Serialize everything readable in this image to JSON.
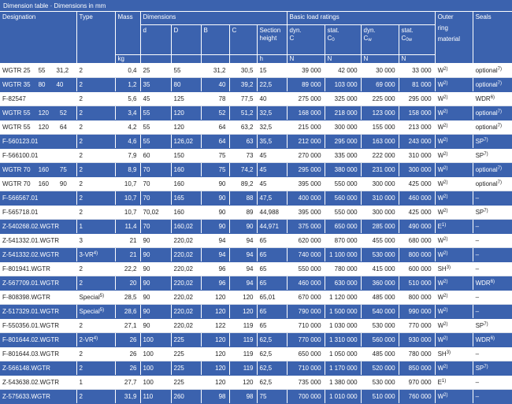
{
  "caption": "Dimension table · Dimensions in mm",
  "header": {
    "designation": "Designation",
    "type": "Type",
    "mass": "Mass",
    "mass_unit": "kg",
    "dimensions": "Dimensions",
    "d": "d",
    "D": "D",
    "B": "B",
    "C": "C",
    "section_height_1": "Section",
    "section_height_2": "height",
    "h": "h",
    "load_ratings": "Basic load ratings",
    "dyn": "dyn.",
    "stat": "stat.",
    "C0_base": "C",
    "C0_sub": "0",
    "Cw_base": "C",
    "Cw_sub": "w",
    "C0w_base": "C",
    "C0w_sub": "0w",
    "N": "N",
    "outer_ring_1": "Outer",
    "outer_ring_2": "ring",
    "outer_ring_3": "material",
    "seals": "Seals"
  },
  "rows": [
    {
      "d1": "WGTR 25",
      "d2": "55",
      "d3": "31,2",
      "type": "2",
      "type_sup": "",
      "mass": "0,4",
      "d": "25",
      "D": "55",
      "B": "31,2",
      "C": "30,5",
      "h": "15",
      "dynC": "39 000",
      "statC0": "42 000",
      "dynCw": "30 000",
      "statC0w": "33 000",
      "mat": "W",
      "mat_sup": "2)",
      "seal": "optional",
      "seal_sup": "7)"
    },
    {
      "d1": "WGTR 35",
      "d2": "80",
      "d3": "40",
      "type": "2",
      "type_sup": "",
      "mass": "1,2",
      "d": "35",
      "D": "80",
      "B": "40",
      "C": "39,2",
      "h": "22,5",
      "dynC": "89 000",
      "statC0": "103 000",
      "dynCw": "69 000",
      "statC0w": "81 000",
      "mat": "W",
      "mat_sup": "2)",
      "seal": "optional",
      "seal_sup": "7)"
    },
    {
      "d1": "F-82547",
      "d2": "",
      "d3": "",
      "type": "2",
      "type_sup": "",
      "mass": "5,6",
      "d": "45",
      "D": "125",
      "B": "78",
      "C": "77,5",
      "h": "40",
      "dynC": "275 000",
      "statC0": "325 000",
      "dynCw": "225 000",
      "statC0w": "295 000",
      "mat": "W",
      "mat_sup": "2)",
      "seal": "WDR",
      "seal_sup": "6)"
    },
    {
      "d1": "WGTR 55",
      "d2": "120",
      "d3": "52",
      "type": "2",
      "type_sup": "",
      "mass": "3,4",
      "d": "55",
      "D": "120",
      "B": "52",
      "C": "51,2",
      "h": "32,5",
      "dynC": "168 000",
      "statC0": "218 000",
      "dynCw": "123 000",
      "statC0w": "158 000",
      "mat": "W",
      "mat_sup": "2)",
      "seal": "optional",
      "seal_sup": "7)"
    },
    {
      "d1": "WGTR 55",
      "d2": "120",
      "d3": "64",
      "type": "2",
      "type_sup": "",
      "mass": "4,2",
      "d": "55",
      "D": "120",
      "B": "64",
      "C": "63,2",
      "h": "32,5",
      "dynC": "215 000",
      "statC0": "300 000",
      "dynCw": "155 000",
      "statC0w": "213 000",
      "mat": "W",
      "mat_sup": "2)",
      "seal": "optional",
      "seal_sup": "7)"
    },
    {
      "d1": "F-560123.01",
      "d2": "",
      "d3": "",
      "type": "2",
      "type_sup": "",
      "mass": "4,6",
      "d": "55",
      "D": "126,02",
      "B": "64",
      "C": "63",
      "h": "35,5",
      "dynC": "212 000",
      "statC0": "295 000",
      "dynCw": "163 000",
      "statC0w": "243 000",
      "mat": "W",
      "mat_sup": "2)",
      "seal": "SP",
      "seal_sup": "7)"
    },
    {
      "d1": "F-566100.01",
      "d2": "",
      "d3": "",
      "type": "2",
      "type_sup": "",
      "mass": "7,9",
      "d": "60",
      "D": "150",
      "B": "75",
      "C": "73",
      "h": "45",
      "dynC": "270 000",
      "statC0": "335 000",
      "dynCw": "222 000",
      "statC0w": "310 000",
      "mat": "W",
      "mat_sup": "2)",
      "seal": "SP",
      "seal_sup": "7)"
    },
    {
      "d1": "WGTR 70",
      "d2": "160",
      "d3": "75",
      "type": "2",
      "type_sup": "",
      "mass": "8,9",
      "d": "70",
      "D": "160",
      "B": "75",
      "C": "74,2",
      "h": "45",
      "dynC": "295 000",
      "statC0": "380 000",
      "dynCw": "231 000",
      "statC0w": "300 000",
      "mat": "W",
      "mat_sup": "2)",
      "seal": "optional",
      "seal_sup": "7)"
    },
    {
      "d1": "WGTR 70",
      "d2": "160",
      "d3": "90",
      "type": "2",
      "type_sup": "",
      "mass": "10,7",
      "d": "70",
      "D": "160",
      "B": "90",
      "C": "89,2",
      "h": "45",
      "dynC": "395 000",
      "statC0": "550 000",
      "dynCw": "300 000",
      "statC0w": "425 000",
      "mat": "W",
      "mat_sup": "2)",
      "seal": "optional",
      "seal_sup": "7)"
    },
    {
      "d1": "F-566567.01",
      "d2": "",
      "d3": "",
      "type": "2",
      "type_sup": "",
      "mass": "10,7",
      "d": "70",
      "D": "165",
      "B": "90",
      "C": "88",
      "h": "47,5",
      "dynC": "400 000",
      "statC0": "560 000",
      "dynCw": "310 000",
      "statC0w": "460 000",
      "mat": "W",
      "mat_sup": "2)",
      "seal": "–",
      "seal_sup": ""
    },
    {
      "d1": "F-565718.01",
      "d2": "",
      "d3": "",
      "type": "2",
      "type_sup": "",
      "mass": "10,7",
      "d": "70,02",
      "D": "160",
      "B": "90",
      "C": "89",
      "h": "44,988",
      "dynC": "395 000",
      "statC0": "550 000",
      "dynCw": "300 000",
      "statC0w": "425 000",
      "mat": "W",
      "mat_sup": "2)",
      "seal": "SP",
      "seal_sup": "7)"
    },
    {
      "d1": "Z-540268.02.WGTR",
      "d2": "",
      "d3": "",
      "type": "1",
      "type_sup": "",
      "mass": "11,4",
      "d": "70",
      "D": "160,02",
      "B": "90",
      "C": "90",
      "h": "44,971",
      "dynC": "375 000",
      "statC0": "650 000",
      "dynCw": "285 000",
      "statC0w": "490 000",
      "mat": "E",
      "mat_sup": "1)",
      "seal": "–",
      "seal_sup": ""
    },
    {
      "d1": "Z-541332.01.WGTR",
      "d2": "",
      "d3": "",
      "type": "3",
      "type_sup": "",
      "mass": "21",
      "d": "90",
      "D": "220,02",
      "B": "94",
      "C": "94",
      "h": "65",
      "dynC": "620 000",
      "statC0": "870 000",
      "dynCw": "455 000",
      "statC0w": "680 000",
      "mat": "W",
      "mat_sup": "2)",
      "seal": "–",
      "seal_sup": ""
    },
    {
      "d1": "Z-541332.02.WGTR",
      "d2": "",
      "d3": "",
      "type": "3-VR",
      "type_sup": "4)",
      "mass": "21",
      "d": "90",
      "D": "220,02",
      "B": "94",
      "C": "94",
      "h": "65",
      "dynC": "740 000",
      "statC0": "1 100 000",
      "dynCw": "530 000",
      "statC0w": "800 000",
      "mat": "W",
      "mat_sup": "2)",
      "seal": "–",
      "seal_sup": ""
    },
    {
      "d1": "F-801941.WGTR",
      "d2": "",
      "d3": "",
      "type": "2",
      "type_sup": "",
      "mass": "22,2",
      "d": "90",
      "D": "220,02",
      "B": "96",
      "C": "94",
      "h": "65",
      "dynC": "550 000",
      "statC0": "780 000",
      "dynCw": "415 000",
      "statC0w": "600 000",
      "mat": "SH",
      "mat_sup": "3)",
      "seal": "–",
      "seal_sup": ""
    },
    {
      "d1": "Z-567709.01.WGTR",
      "d2": "",
      "d3": "",
      "type": "2",
      "type_sup": "",
      "mass": "20",
      "d": "90",
      "D": "220,02",
      "B": "96",
      "C": "94",
      "h": "65",
      "dynC": "460 000",
      "statC0": "630 000",
      "dynCw": "360 000",
      "statC0w": "510 000",
      "mat": "W",
      "mat_sup": "2)",
      "seal": "WDR",
      "seal_sup": "6)"
    },
    {
      "d1": "F-808398.WGTR",
      "d2": "",
      "d3": "",
      "type": "Special",
      "type_sup": "5)",
      "mass": "28,5",
      "d": "90",
      "D": "220,02",
      "B": "120",
      "C": "120",
      "h": "65,01",
      "dynC": "670 000",
      "statC0": "1 120 000",
      "dynCw": "485 000",
      "statC0w": "800 000",
      "mat": "W",
      "mat_sup": "2)",
      "seal": "–",
      "seal_sup": ""
    },
    {
      "d1": "Z-517329.01.WGTR",
      "d2": "",
      "d3": "",
      "type": "Special",
      "type_sup": "5)",
      "mass": "28,6",
      "d": "90",
      "D": "220,02",
      "B": "120",
      "C": "120",
      "h": "65",
      "dynC": "790 000",
      "statC0": "1 500 000",
      "dynCw": "540 000",
      "statC0w": "990 000",
      "mat": "W",
      "mat_sup": "2)",
      "seal": "–",
      "seal_sup": ""
    },
    {
      "d1": "F-550356.01.WGTR",
      "d2": "",
      "d3": "",
      "type": "2",
      "type_sup": "",
      "mass": "27,1",
      "d": "90",
      "D": "220,02",
      "B": "122",
      "C": "119",
      "h": "65",
      "dynC": "710 000",
      "statC0": "1 030 000",
      "dynCw": "530 000",
      "statC0w": "770 000",
      "mat": "W",
      "mat_sup": "2)",
      "seal": "SP",
      "seal_sup": "7)"
    },
    {
      "d1": "F-801644.02.WGTR",
      "d2": "",
      "d3": "",
      "type": "2-VR",
      "type_sup": "4)",
      "mass": "26",
      "d": "100",
      "D": "225",
      "B": "120",
      "C": "119",
      "h": "62,5",
      "dynC": "770 000",
      "statC0": "1 310 000",
      "dynCw": "560 000",
      "statC0w": "930 000",
      "mat": "W",
      "mat_sup": "2)",
      "seal": "WDR",
      "seal_sup": "6)"
    },
    {
      "d1": "F-801644.03.WGTR",
      "d2": "",
      "d3": "",
      "type": "2",
      "type_sup": "",
      "mass": "26",
      "d": "100",
      "D": "225",
      "B": "120",
      "C": "119",
      "h": "62,5",
      "dynC": "650 000",
      "statC0": "1 050 000",
      "dynCw": "485 000",
      "statC0w": "780 000",
      "mat": "SH",
      "mat_sup": "3)",
      "seal": "–",
      "seal_sup": ""
    },
    {
      "d1": "Z-566148.WGTR",
      "d2": "",
      "d3": "",
      "type": "2",
      "type_sup": "",
      "mass": "26",
      "d": "100",
      "D": "225",
      "B": "120",
      "C": "119",
      "h": "62,5",
      "dynC": "710 000",
      "statC0": "1 170 000",
      "dynCw": "520 000",
      "statC0w": "850 000",
      "mat": "W",
      "mat_sup": "2)",
      "seal": "SP",
      "seal_sup": "7)"
    },
    {
      "d1": "Z-543638.02.WGTR",
      "d2": "",
      "d3": "",
      "type": "1",
      "type_sup": "",
      "mass": "27,7",
      "d": "100",
      "D": "225",
      "B": "120",
      "C": "120",
      "h": "62,5",
      "dynC": "735 000",
      "statC0": "1 380 000",
      "dynCw": "530 000",
      "statC0w": "970 000",
      "mat": "E",
      "mat_sup": "1)",
      "seal": "–",
      "seal_sup": ""
    },
    {
      "d1": "Z-575633.WGTR",
      "d2": "",
      "d3": "",
      "type": "2",
      "type_sup": "",
      "mass": "31,9",
      "d": "110",
      "D": "260",
      "B": "98",
      "C": "98",
      "h": "75",
      "dynC": "700 000",
      "statC0": "1 010 000",
      "dynCw": "510 000",
      "statC0w": "760 000",
      "mat": "W",
      "mat_sup": "2)",
      "seal": "–",
      "seal_sup": ""
    }
  ]
}
